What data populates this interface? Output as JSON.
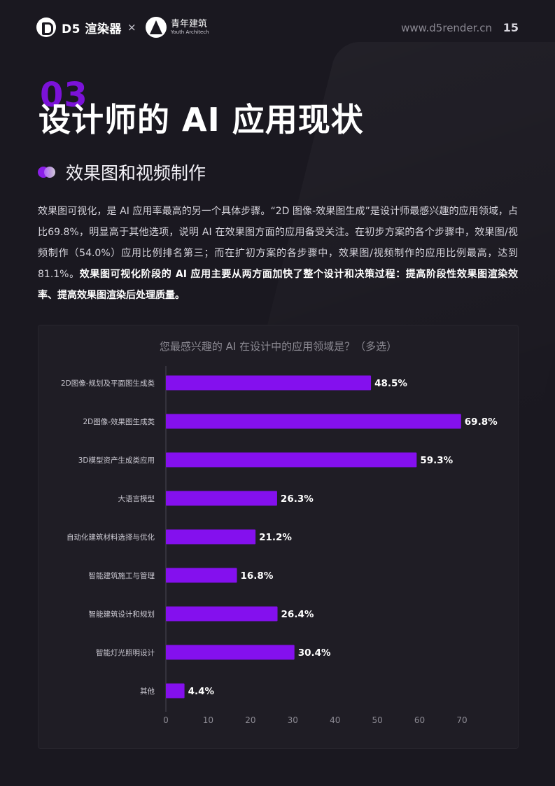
{
  "header": {
    "d5_logo_text": "D5 渲染器",
    "times": "×",
    "partner_name_cn": "青年建筑",
    "partner_name_en": "Youth Architech",
    "url": "www.d5render.cn",
    "page_number": "15"
  },
  "section": {
    "number": "03",
    "title": "设计师的 AI 应用现状",
    "subtitle": "效果图和视频制作"
  },
  "body": {
    "paragraph_plain": "效果图可视化，是 AI 应用率最高的另一个具体步骤。“2D 图像-效果图生成”是设计师最感兴趣的应用领域，占比69.8%，明显高于其他选项，说明 AI 在效果图方面的应用备受关注。在初步方案的各个步骤中，效果图/视频制作（54.0%）应用比例排名第三；而在扩初方案的各步骤中，效果图/视频制作的应用比例最高，达到81.1%。",
    "paragraph_bold": "效果图可视化阶段的 AI 应用主要从两方面加快了整个设计和决策过程：提高阶段性效果图渲染效率、提高效果图渲染后处理质量。"
  },
  "colors": {
    "bar": "#8410ee",
    "accent": "#7b12d8",
    "background": "#1a1820"
  },
  "chart_data": {
    "type": "bar",
    "orientation": "horizontal",
    "title": "您最感兴趣的 AI 在设计中的应用领域是？（多选）",
    "categories": [
      "2D图像-规划及平面图生成类",
      "2D图像-效果图生成类",
      "3D模型资产生成类应用",
      "大语言模型",
      "自动化建筑材料选择与优化",
      "智能建筑施工与管理",
      "智能建筑设计和规划",
      "智能灯光照明设计",
      "其他"
    ],
    "values": [
      48.5,
      69.8,
      59.3,
      26.3,
      21.2,
      16.8,
      26.4,
      30.4,
      4.4
    ],
    "data_labels": [
      "48.5%",
      "69.8%",
      "59.3%",
      "26.3%",
      "21.2%",
      "16.8%",
      "26.4%",
      "30.4%",
      "4.4%"
    ],
    "xlim": [
      0,
      70
    ],
    "xticks": [
      0,
      10,
      20,
      30,
      40,
      50,
      60,
      70
    ],
    "xlabel": "",
    "ylabel": "",
    "grid": false
  }
}
